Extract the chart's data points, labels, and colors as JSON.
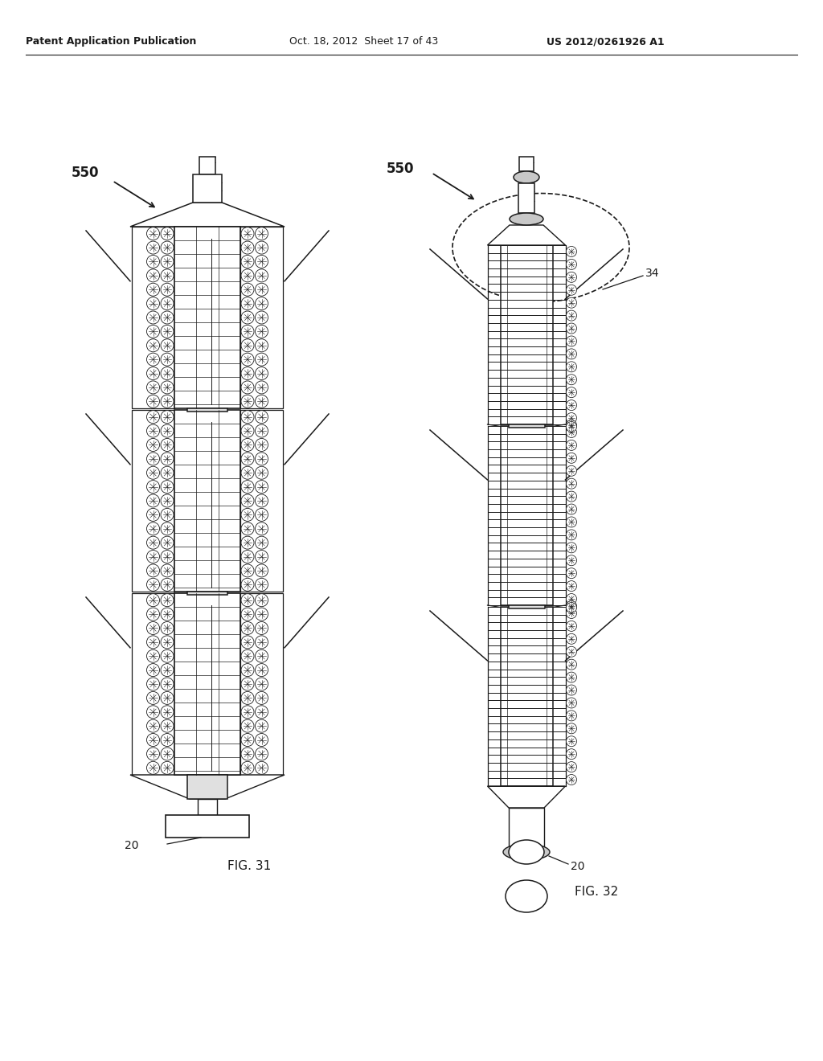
{
  "header_left": "Patent Application Publication",
  "header_center": "Oct. 18, 2012  Sheet 17 of 43",
  "header_right": "US 2012/0261926 A1",
  "fig31_label": "FIG. 31",
  "fig32_label": "FIG. 32",
  "label_550": "550",
  "label_20": "20",
  "label_34": "34",
  "bg_color": "#ffffff",
  "line_color": "#1a1a1a",
  "gray1": "#e0e0e0",
  "gray2": "#c8c8c8",
  "gray3": "#d8d8d8"
}
